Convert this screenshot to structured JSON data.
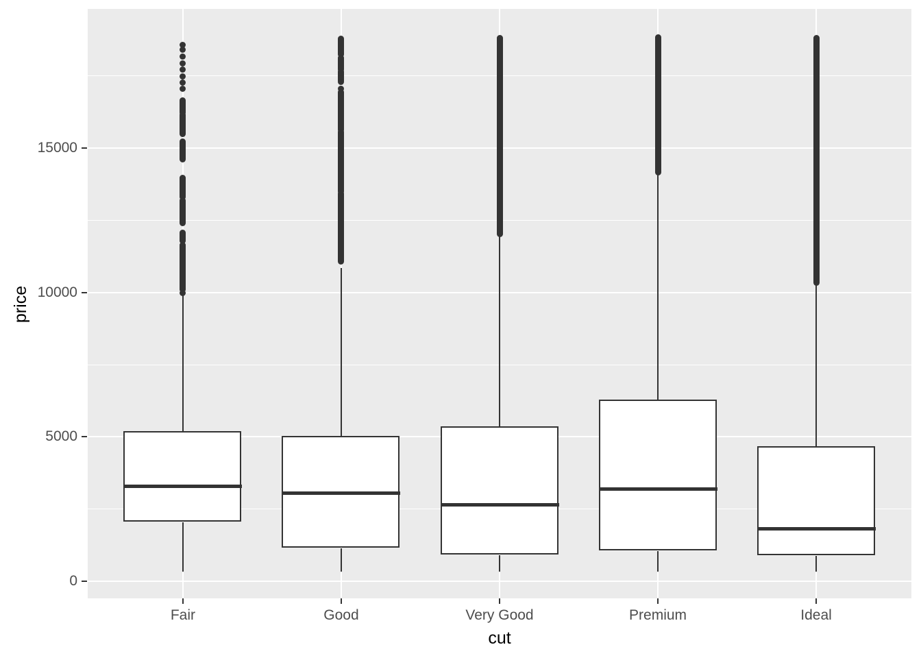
{
  "style": {
    "figure_bg": "#ffffff",
    "panel_bg": "#ebebeb",
    "grid_color": "#ffffff",
    "line_color": "#333333",
    "box_fill": "#ffffff",
    "tick_label_color": "#4d4d4d",
    "axis_title_color": "#000000"
  },
  "chart_data": {
    "type": "boxplot",
    "title": "",
    "xlabel": "cut",
    "ylabel": "price",
    "categories": [
      "Fair",
      "Good",
      "Very Good",
      "Premium",
      "Ideal"
    ],
    "x_tick_labels": [
      "Fair",
      "Good",
      "Very Good",
      "Premium",
      "Ideal"
    ],
    "y_ticks": [
      0,
      5000,
      10000,
      15000
    ],
    "y_tick_labels": [
      "0",
      "5000",
      "10000",
      "15000"
    ],
    "y_minor_ticks": [
      2500,
      7500,
      12500,
      17500
    ],
    "ylim": [
      -590,
      19820
    ],
    "grid": "white major+minor horizontal lines and major vertical lines on grey panel",
    "legend": "none",
    "series": [
      {
        "category": "Fair",
        "min": 337,
        "q1": 2050,
        "median": 3282,
        "q3": 5206,
        "upper_whisker": 9940,
        "outlier_points": [
          18574,
          18396,
          18158,
          17921,
          17707,
          17470,
          17256,
          17043,
          9969
        ],
        "outlier_bands": [
          [
            16213,
            16640
          ],
          [
            15477,
            16142
          ],
          [
            14599,
            15216
          ],
          [
            13293,
            13958
          ],
          [
            12391,
            13175
          ],
          [
            11774,
            12059
          ],
          [
            10088,
            11631
          ]
        ]
      },
      {
        "category": "Good",
        "min": 327,
        "q1": 1145,
        "median": 3050.5,
        "q3": 5028,
        "upper_whisker": 10840,
        "outlier_points": [
          17280,
          17050
        ],
        "outlier_bands": [
          [
            18230,
            18788
          ],
          [
            17707,
            18111
          ],
          [
            17327,
            17636
          ],
          [
            15619,
            16924
          ],
          [
            13483,
            15548
          ],
          [
            11062,
            13412
          ]
        ]
      },
      {
        "category": "Very Good",
        "min": 336,
        "q1": 912,
        "median": 2648,
        "q3": 5372.75,
        "upper_whisker": 12030,
        "outlier_points": [],
        "outlier_bands": [
          [
            12030,
            18818
          ]
        ]
      },
      {
        "category": "Premium",
        "min": 326,
        "q1": 1046,
        "median": 3185,
        "q3": 6296,
        "upper_whisker": 14160,
        "outlier_points": [],
        "outlier_bands": [
          [
            14150,
            18823
          ]
        ]
      },
      {
        "category": "Ideal",
        "min": 326,
        "q1": 878,
        "median": 1810,
        "q3": 4678.5,
        "upper_whisker": 10370,
        "outlier_points": [],
        "outlier_bands": [
          [
            10330,
            18806
          ]
        ]
      }
    ]
  }
}
